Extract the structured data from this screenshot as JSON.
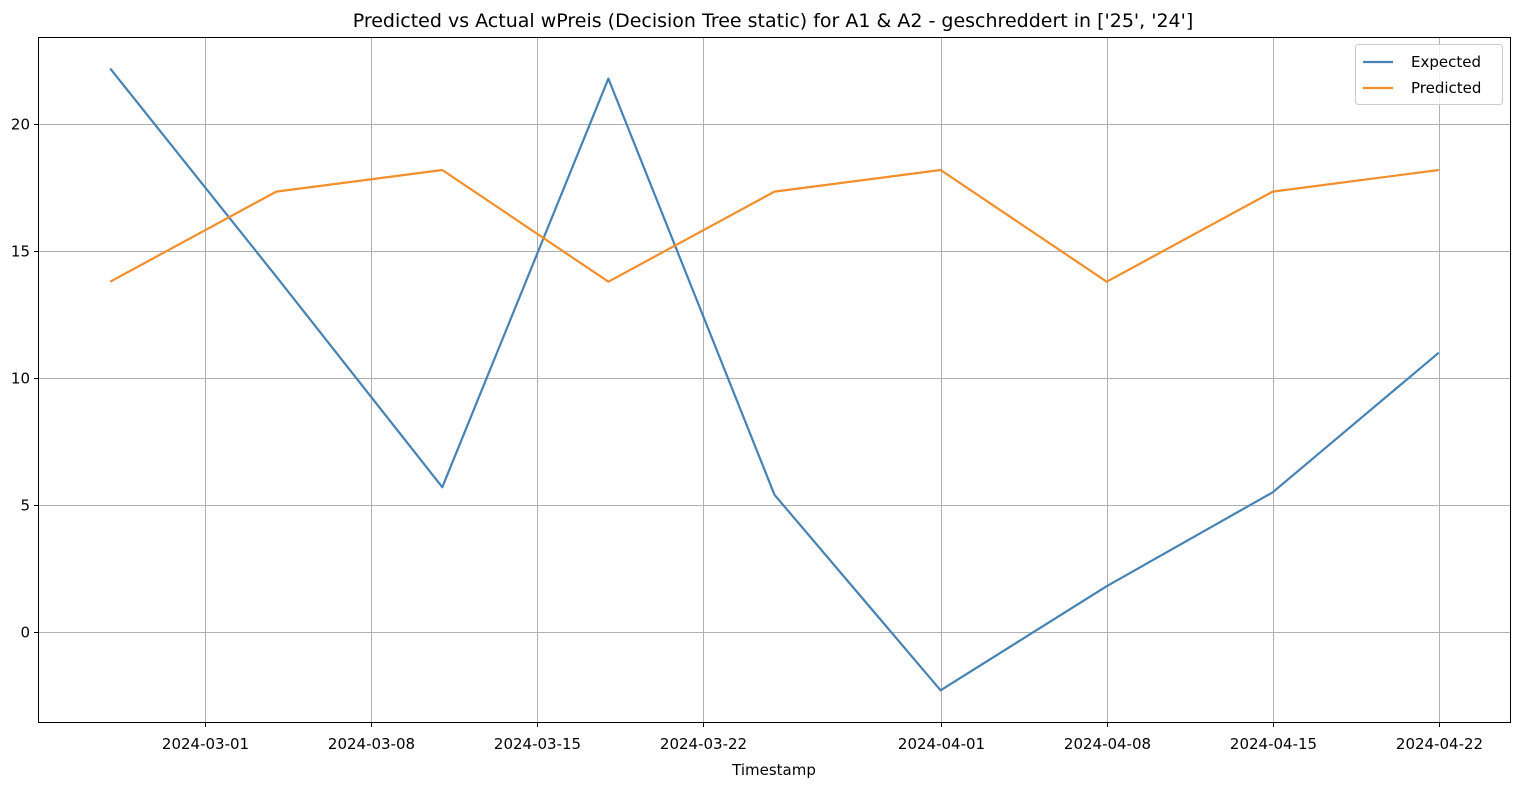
{
  "chart_data": {
    "type": "line",
    "title": "Predicted vs Actual wPreis (Decision Tree static) for A1 & A2 -  geschreddert in ['25', '24']",
    "xlabel": "Timestamp",
    "ylabel": "",
    "x": [
      "2024-02-26",
      "2024-03-04",
      "2024-03-11",
      "2024-03-18",
      "2024-03-25",
      "2024-04-01",
      "2024-04-08",
      "2024-04-15",
      "2024-04-22"
    ],
    "series": [
      {
        "name": "Expected",
        "color": "#4682b4",
        "values": [
          22.2,
          14.0,
          5.7,
          21.8,
          5.4,
          -2.3,
          1.8,
          5.5,
          11.0
        ]
      },
      {
        "name": "Predicted",
        "color": "#f28e2b",
        "values": [
          13.8,
          17.35,
          18.2,
          13.8,
          17.35,
          18.2,
          13.8,
          17.35,
          18.2
        ]
      }
    ],
    "x_ticks": [
      "2024-03-01",
      "2024-03-08",
      "2024-03-15",
      "2024-03-22",
      "2024-04-01",
      "2024-04-08",
      "2024-04-15",
      "2024-04-22"
    ],
    "y_ticks": [
      0,
      5,
      10,
      15,
      20
    ],
    "xlim": [
      "2024-02-23",
      "2024-04-25"
    ],
    "ylim": [
      -3.55,
      23.4
    ],
    "grid": true,
    "legend": "top-right"
  }
}
